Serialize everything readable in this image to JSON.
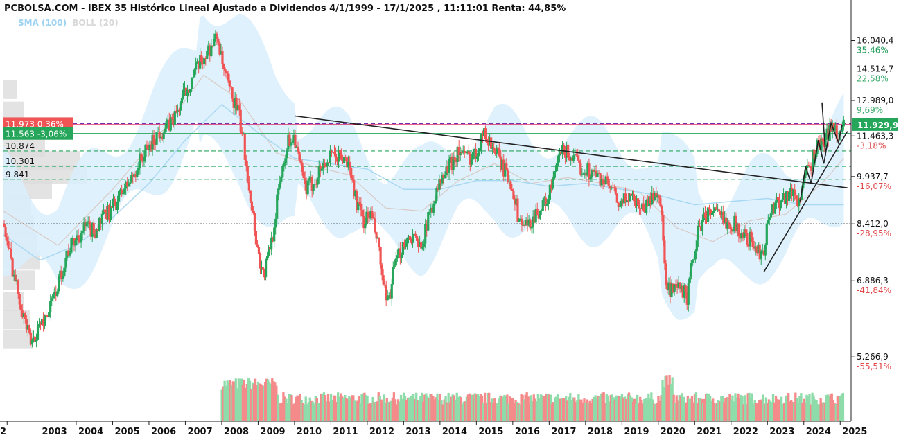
{
  "header": {
    "title": "PCBOLSA.COM - IBEX 35 Histórico Lineal Ajustado a Dividendos 4/1/1999 - 17/1/2025 , 11:11:01 Renta: 44,85%"
  },
  "legend": {
    "sma": "SMA (100)",
    "boll": "BOLL (20)"
  },
  "colors": {
    "up": "#26a65b",
    "down": "#f05454",
    "volume_up": "#8fdcab",
    "volume_down": "#f58a8a",
    "band_fill": "#d9eefb",
    "sma_line": "#a8d8f2",
    "boll_mid": "#d9c9c4",
    "profile": "#dcdcdc",
    "trendline": "#222222",
    "price_line": "#c00044"
  },
  "chart_data": {
    "type": "candlestick",
    "x_axis": {
      "ticks": [
        "2",
        "2003",
        "2004",
        "2005",
        "2006",
        "2007",
        "2008",
        "2009",
        "2010",
        "2011",
        "2012",
        "2013",
        "2014",
        "2015",
        "2016",
        "2017",
        "2018",
        "2019",
        "2020",
        "2021",
        "2022",
        "2023",
        "2024",
        "2025"
      ],
      "tick_values": [
        2002.1,
        2003.0,
        2004.0,
        2005.0,
        2006.0,
        2007.0,
        2008.0,
        2009.0,
        2010.0,
        2011.0,
        2012.0,
        2013.0,
        2014.0,
        2015.0,
        2016.0,
        2017.0,
        2018.0,
        2019.0,
        2020.0,
        2021.0,
        2022.0,
        2023.0,
        2024.0,
        2025.0
      ],
      "range": [
        2002.0,
        2025.3
      ]
    },
    "y_axis": {
      "scale": "log",
      "range": [
        4200,
        18500
      ],
      "ticks": [
        {
          "value": 16040.4,
          "label": "16.040,4",
          "pct": "35,46%",
          "pct_color": "#1a9a55"
        },
        {
          "value": 14514.7,
          "label": "14.514,7",
          "pct": "22,58%",
          "pct_color": "#3cad6d"
        },
        {
          "value": 12989.0,
          "label": "12.989,0",
          "pct": "9,69%",
          "pct_color": "#3cad6d"
        },
        {
          "value": 11463.3,
          "label": "11.463,3",
          "pct": "-3,18%",
          "pct_color": "#e04848"
        },
        {
          "value": 9937.7,
          "label": "9.937,7",
          "pct": "-16,07%",
          "pct_color": "#e04848"
        },
        {
          "value": 8412.0,
          "label": "8.412,0",
          "pct": "-28,95%",
          "pct_color": "#e04848"
        },
        {
          "value": 6886.3,
          "label": "6.886,3",
          "pct": "-41,84%",
          "pct_color": "#e04848"
        },
        {
          "value": 5266.9,
          "label": "5.266,9",
          "pct": "-55,51%",
          "pct_color": "#e04848"
        }
      ]
    },
    "price_labels": [
      {
        "value": 11973,
        "text": "11.973 0,36%",
        "bg": "#f05454"
      },
      {
        "value": 11563,
        "text": "11.563 -3,06%",
        "bg": "#26a65b"
      },
      {
        "value": 11929.9,
        "text": "11.929,9",
        "bg": "#26a65b",
        "side": "right"
      }
    ],
    "level_labels": [
      {
        "value": 10874,
        "text": "10.874"
      },
      {
        "value": 10301,
        "text": "10.301"
      },
      {
        "value": 9841,
        "text": "9.841"
      }
    ],
    "reference_lines": [
      {
        "value": 11973,
        "style": "dashed",
        "color": "#7a2fb0"
      },
      {
        "value": 11929.9,
        "style": "solid",
        "color": "#d40044"
      },
      {
        "value": 11563,
        "style": "solid",
        "color": "#26a65b"
      },
      {
        "value": 10874,
        "style": "dashed",
        "color": "#26a65b"
      },
      {
        "value": 10301,
        "style": "dashed",
        "color": "#26a65b"
      },
      {
        "value": 9841,
        "style": "dashed",
        "color": "#26a65b"
      },
      {
        "value": 8412,
        "style": "dotted",
        "color": "#333333"
      }
    ],
    "close_path": [
      [
        2002.0,
        8400
      ],
      [
        2002.25,
        7200
      ],
      [
        2002.5,
        6300
      ],
      [
        2002.75,
        5500
      ],
      [
        2003.0,
        5900
      ],
      [
        2003.25,
        6200
      ],
      [
        2003.5,
        6800
      ],
      [
        2003.75,
        7600
      ],
      [
        2004.0,
        8000
      ],
      [
        2004.25,
        8300
      ],
      [
        2004.5,
        8200
      ],
      [
        2004.75,
        8600
      ],
      [
        2005.0,
        8900
      ],
      [
        2005.25,
        9400
      ],
      [
        2005.5,
        9800
      ],
      [
        2005.75,
        10500
      ],
      [
        2006.0,
        11000
      ],
      [
        2006.25,
        11600
      ],
      [
        2006.5,
        11800
      ],
      [
        2006.75,
        12400
      ],
      [
        2007.0,
        13400
      ],
      [
        2007.25,
        14300
      ],
      [
        2007.5,
        15100
      ],
      [
        2007.75,
        15900
      ],
      [
        2007.9,
        16200
      ],
      [
        2008.0,
        14800
      ],
      [
        2008.2,
        13500
      ],
      [
        2008.45,
        12500
      ],
      [
        2008.6,
        11200
      ],
      [
        2008.8,
        9200
      ],
      [
        2009.0,
        7600
      ],
      [
        2009.15,
        7000
      ],
      [
        2009.4,
        8100
      ],
      [
        2009.6,
        9800
      ],
      [
        2009.8,
        11200
      ],
      [
        2010.0,
        11500
      ],
      [
        2010.1,
        10600
      ],
      [
        2010.3,
        9500
      ],
      [
        2010.5,
        9700
      ],
      [
        2010.75,
        10300
      ],
      [
        2011.0,
        10600
      ],
      [
        2011.25,
        10700
      ],
      [
        2011.5,
        10300
      ],
      [
        2011.7,
        9100
      ],
      [
        2011.9,
        8500
      ],
      [
        2012.1,
        8700
      ],
      [
        2012.3,
        7800
      ],
      [
        2012.45,
        6700
      ],
      [
        2012.55,
        6300
      ],
      [
        2012.75,
        7200
      ],
      [
        2013.0,
        7900
      ],
      [
        2013.25,
        8100
      ],
      [
        2013.4,
        7700
      ],
      [
        2013.6,
        8200
      ],
      [
        2013.75,
        8900
      ],
      [
        2014.0,
        9700
      ],
      [
        2014.25,
        10300
      ],
      [
        2014.5,
        10900
      ],
      [
        2014.75,
        10600
      ],
      [
        2015.0,
        10800
      ],
      [
        2015.15,
        11600
      ],
      [
        2015.35,
        11300
      ],
      [
        2015.55,
        10800
      ],
      [
        2015.75,
        10200
      ],
      [
        2016.0,
        9600
      ],
      [
        2016.15,
        8600
      ],
      [
        2016.4,
        8300
      ],
      [
        2016.6,
        8700
      ],
      [
        2016.8,
        8900
      ],
      [
        2017.0,
        9300
      ],
      [
        2017.25,
        10500
      ],
      [
        2017.4,
        10900
      ],
      [
        2017.6,
        10700
      ],
      [
        2017.8,
        10300
      ],
      [
        2018.0,
        10200
      ],
      [
        2018.25,
        10000
      ],
      [
        2018.5,
        9800
      ],
      [
        2018.75,
        9400
      ],
      [
        2018.95,
        8900
      ],
      [
        2019.2,
        9400
      ],
      [
        2019.4,
        9100
      ],
      [
        2019.6,
        8900
      ],
      [
        2019.8,
        9200
      ],
      [
        2020.0,
        9500
      ],
      [
        2020.12,
        8300
      ],
      [
        2020.2,
        6700
      ],
      [
        2020.4,
        6600
      ],
      [
        2020.6,
        6700
      ],
      [
        2020.8,
        6500
      ],
      [
        2020.95,
        7400
      ],
      [
        2021.1,
        8200
      ],
      [
        2021.3,
        8700
      ],
      [
        2021.5,
        8800
      ],
      [
        2021.7,
        8600
      ],
      [
        2021.9,
        8500
      ],
      [
        2022.1,
        8400
      ],
      [
        2022.3,
        8100
      ],
      [
        2022.5,
        8000
      ],
      [
        2022.75,
        7600
      ],
      [
        2022.9,
        7700
      ],
      [
        2023.05,
        8700
      ],
      [
        2023.25,
        9100
      ],
      [
        2023.5,
        9300
      ],
      [
        2023.7,
        9400
      ],
      [
        2023.85,
        9100
      ],
      [
        2024.0,
        9800
      ],
      [
        2024.2,
        10400
      ],
      [
        2024.4,
        11200
      ],
      [
        2024.55,
        11100
      ],
      [
        2024.7,
        11700
      ],
      [
        2024.85,
        11800
      ],
      [
        2025.0,
        11500
      ],
      [
        2025.1,
        11930
      ]
    ],
    "volume_profile_mid": [
      [
        2002.0,
        8800
      ],
      [
        2003.5,
        7800
      ],
      [
        2005.0,
        9500
      ],
      [
        2006.5,
        11900
      ],
      [
        2007.5,
        14200
      ],
      [
        2008.5,
        13000
      ],
      [
        2009.5,
        10800
      ],
      [
        2010.5,
        10300
      ],
      [
        2011.5,
        10000
      ],
      [
        2012.5,
        8900
      ],
      [
        2013.5,
        8800
      ],
      [
        2014.5,
        9800
      ],
      [
        2015.5,
        10400
      ],
      [
        2016.5,
        9700
      ],
      [
        2017.5,
        9900
      ],
      [
        2018.5,
        9700
      ],
      [
        2019.5,
        9400
      ],
      [
        2020.5,
        8300
      ],
      [
        2021.5,
        7900
      ],
      [
        2022.5,
        8500
      ],
      [
        2023.5,
        8700
      ],
      [
        2024.5,
        9700
      ],
      [
        2025.1,
        10600
      ]
    ],
    "sma100": [
      [
        2002.0,
        8100
      ],
      [
        2003.0,
        7400
      ],
      [
        2004.0,
        7800
      ],
      [
        2005.0,
        8600
      ],
      [
        2006.0,
        9700
      ],
      [
        2007.0,
        11300
      ],
      [
        2008.0,
        12800
      ],
      [
        2009.0,
        11600
      ],
      [
        2010.0,
        10600
      ],
      [
        2011.0,
        10400
      ],
      [
        2012.0,
        10200
      ],
      [
        2013.0,
        9500
      ],
      [
        2014.0,
        9500
      ],
      [
        2015.0,
        9800
      ],
      [
        2016.0,
        9800
      ],
      [
        2017.0,
        9600
      ],
      [
        2018.0,
        9700
      ],
      [
        2019.0,
        9500
      ],
      [
        2020.0,
        9300
      ],
      [
        2021.0,
        9000
      ],
      [
        2022.0,
        9100
      ],
      [
        2023.0,
        9200
      ],
      [
        2024.0,
        9000
      ],
      [
        2025.1,
        9000
      ]
    ],
    "trendlines": [
      {
        "from": [
          2010.0,
          12300
        ],
        "to": [
          2025.2,
          9550
        ]
      },
      {
        "from": [
          2022.9,
          7100
        ],
        "to": [
          2025.2,
          11650
        ]
      }
    ],
    "volume": {
      "start": 2008.0,
      "note": "relative heights, 0-1"
    }
  }
}
